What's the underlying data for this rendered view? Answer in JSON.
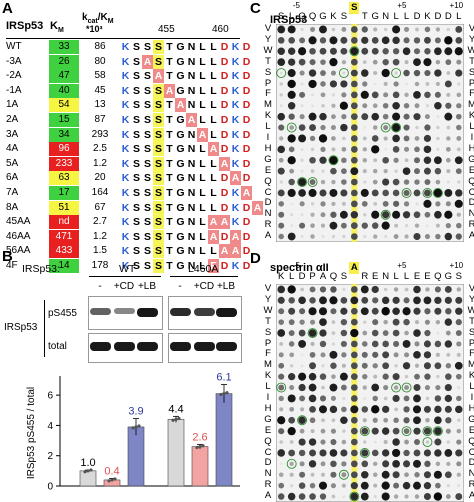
{
  "panels": {
    "A": "A",
    "B": "B",
    "C": "C",
    "D": "D"
  },
  "tableA": {
    "headers": {
      "name": "IRSp53",
      "km": "K",
      "km_sub": "M",
      "kcat": "k",
      "kcat_sub": "cat",
      "kcat_sep": "/K",
      "kcat_sub2": "M",
      "kcat_scale": "*10³",
      "pos455": "455",
      "pos460": "460"
    },
    "rows": [
      {
        "name": "WT",
        "km": "33",
        "kc": "86",
        "kmColor": "green",
        "seq": [
          "K",
          "S",
          "S",
          "S",
          "T",
          "G",
          "N",
          "L",
          "L",
          "D",
          "K",
          "D"
        ]
      },
      {
        "name": "-3A",
        "km": "26",
        "kc": "80",
        "kmColor": "green",
        "seq": [
          "K",
          "S",
          "A",
          "S",
          "T",
          "G",
          "N",
          "L",
          "L",
          "D",
          "K",
          "D"
        ]
      },
      {
        "name": "-2A",
        "km": "47",
        "kc": "58",
        "kmColor": "green",
        "seq": [
          "K",
          "S",
          "S",
          "A",
          "T",
          "G",
          "N",
          "L",
          "L",
          "D",
          "K",
          "D"
        ]
      },
      {
        "name": "-1A",
        "km": "40",
        "kc": "45",
        "kmColor": "green",
        "seq": [
          "K",
          "S",
          "S",
          "S",
          "A",
          "G",
          "N",
          "L",
          "L",
          "D",
          "K",
          "D"
        ]
      },
      {
        "name": "1A",
        "km": "54",
        "kc": "13",
        "kmColor": "yellow",
        "seq": [
          "K",
          "S",
          "S",
          "S",
          "T",
          "A",
          "N",
          "L",
          "L",
          "D",
          "K",
          "D"
        ]
      },
      {
        "name": "2A",
        "km": "15",
        "kc": "87",
        "kmColor": "green",
        "seq": [
          "K",
          "S",
          "S",
          "S",
          "T",
          "G",
          "A",
          "L",
          "L",
          "D",
          "K",
          "D"
        ]
      },
      {
        "name": "3A",
        "km": "34",
        "kc": "293",
        "kmColor": "green",
        "seq": [
          "K",
          "S",
          "S",
          "S",
          "T",
          "G",
          "N",
          "A",
          "L",
          "D",
          "K",
          "D"
        ]
      },
      {
        "name": "4A",
        "km": "96",
        "kc": "2.5",
        "kmColor": "red",
        "seq": [
          "K",
          "S",
          "S",
          "S",
          "T",
          "G",
          "N",
          "L",
          "A",
          "D",
          "K",
          "D"
        ]
      },
      {
        "name": "5A",
        "km": "233",
        "kc": "1.2",
        "kmColor": "red",
        "seq": [
          "K",
          "S",
          "S",
          "S",
          "T",
          "G",
          "N",
          "L",
          "L",
          "A",
          "K",
          "D"
        ]
      },
      {
        "name": "6A",
        "km": "63",
        "kc": "20",
        "kmColor": "yellow",
        "seq": [
          "K",
          "S",
          "S",
          "S",
          "T",
          "G",
          "N",
          "L",
          "L",
          "D",
          "A",
          "D"
        ]
      },
      {
        "name": "7A",
        "km": "17",
        "kc": "164",
        "kmColor": "green",
        "seq": [
          "K",
          "S",
          "S",
          "S",
          "T",
          "G",
          "N",
          "L",
          "L",
          "D",
          "K",
          "A"
        ]
      },
      {
        "name": "8A",
        "km": "51",
        "kc": "67",
        "kmColor": "yellow",
        "seq": [
          "K",
          "S",
          "S",
          "S",
          "T",
          "G",
          "N",
          "L",
          "L",
          "D",
          "K",
          "D",
          "A"
        ]
      },
      {
        "name": "45AA",
        "km": "nd",
        "kc": "2.7",
        "kmColor": "red",
        "seq": [
          "K",
          "S",
          "S",
          "S",
          "T",
          "G",
          "N",
          "L",
          "A",
          "A",
          "K",
          "D"
        ]
      },
      {
        "name": "46AA",
        "km": "471",
        "kc": "1.2",
        "kmColor": "red",
        "seq": [
          "K",
          "S",
          "S",
          "S",
          "T",
          "G",
          "N",
          "L",
          "A",
          "D",
          "A",
          "D"
        ]
      },
      {
        "name": "56AA",
        "km": "433",
        "kc": "1.5",
        "kmColor": "red",
        "seq": [
          "K",
          "S",
          "S",
          "S",
          "T",
          "G",
          "N",
          "L",
          "L",
          "A",
          "A",
          "D"
        ]
      },
      {
        "name": "4F",
        "km": "14",
        "kc": "178",
        "kmColor": "green",
        "seq": [
          "K",
          "S",
          "S",
          "S",
          "T",
          "G",
          "N",
          "L",
          "F",
          "D",
          "K",
          "D"
        ]
      }
    ]
  },
  "panelB": {
    "row_label": "IRSp53:",
    "wt": "WT",
    "mut": "L460A",
    "lanes": [
      "-",
      "+CD",
      "+LB",
      "-",
      "+CD",
      "+LB"
    ],
    "blot_labels": {
      "top": "pS455",
      "bottom": "total",
      "group": "IRSp53"
    },
    "ylabel": "IRSp53 pS455 / total"
  },
  "chart_data": {
    "type": "bar",
    "categories": [
      "WT -",
      "WT +CD",
      "WT +LB",
      "L460A -",
      "L460A +CD",
      "L460A +LB"
    ],
    "values": [
      1.0,
      0.4,
      3.9,
      4.4,
      2.6,
      6.1
    ],
    "labels": [
      "1.0",
      "0.4",
      "3.9",
      "4.4",
      "2.6",
      "6.1"
    ],
    "colors": [
      "#d9d9d9",
      "#f4a3a3",
      "#7f86c6",
      "#d9d9d9",
      "#f4a3a3",
      "#7f86c6"
    ],
    "ylim": [
      0,
      7
    ],
    "yticks": [
      "0",
      "2",
      "4",
      "6"
    ],
    "ylabel": "IRSp53 pS455 / total"
  },
  "arrays": {
    "C": {
      "title": "IRSp53",
      "columns": [
        "S",
        "L",
        "Q",
        "Q",
        "G",
        "K",
        "S",
        "S",
        "T",
        "G",
        "N",
        "L",
        "L",
        "D",
        "K",
        "D",
        "D",
        "L"
      ],
      "highlight": "S",
      "pos": {
        "m5": "-5",
        "p5": "+5",
        "p10": "+10"
      },
      "rows": [
        "V",
        "Y",
        "W",
        "T",
        "S",
        "P",
        "F",
        "M",
        "K",
        "L",
        "I",
        "H",
        "G",
        "E",
        "Q",
        "C",
        "D",
        "N",
        "R",
        "A"
      ]
    },
    "D": {
      "title": "spectrin αII",
      "columns": [
        "K",
        "L",
        "D",
        "P",
        "A",
        "Q",
        "S",
        "A",
        "R",
        "E",
        "N",
        "L",
        "L",
        "E",
        "E",
        "Q",
        "G",
        "S"
      ],
      "highlight": "S",
      "pos": {
        "m5": "-5",
        "p5": "+5",
        "p10": "+10"
      },
      "rows": [
        "V",
        "Y",
        "W",
        "T",
        "S",
        "P",
        "F",
        "M",
        "K",
        "L",
        "I",
        "H",
        "G",
        "E",
        "Q",
        "C",
        "D",
        "N",
        "R",
        "A"
      ]
    }
  }
}
